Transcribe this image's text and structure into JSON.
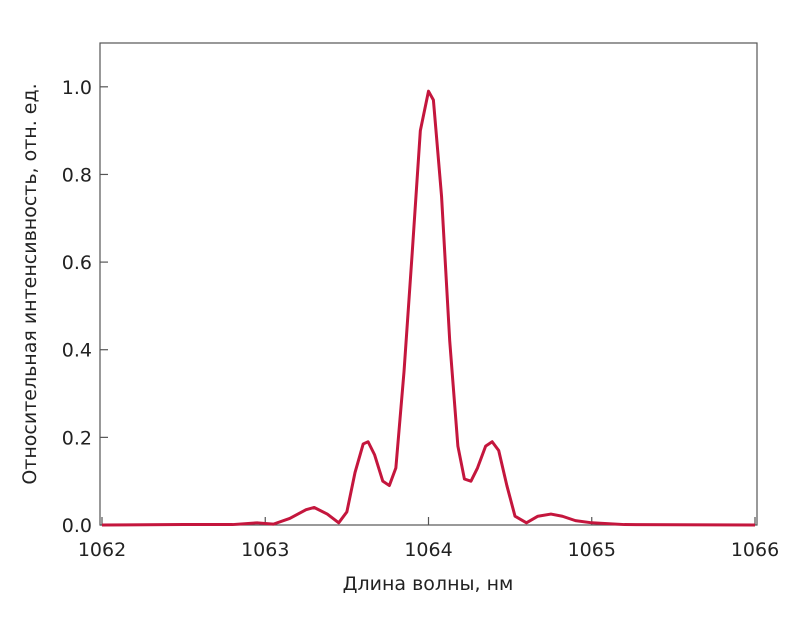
{
  "chart_data": {
    "type": "line",
    "xlabel": "Длина волны, нм",
    "ylabel": "Относительная интенсивность, отн. ед.",
    "xlim": [
      1062,
      1066
    ],
    "xticks": [
      1062,
      1063,
      1064,
      1065,
      1066
    ],
    "ylim": [
      0,
      1.1
    ],
    "yticks": [
      {
        "value": 0,
        "label": "0.0"
      },
      0.2,
      0.4,
      0.6,
      0.8,
      {
        "value": 1,
        "label": "1.0"
      }
    ],
    "x": [
      1062,
      1062.5,
      1062.8,
      1062.95,
      1063.05,
      1063.15,
      1063.25,
      1063.3,
      1063.38,
      1063.45,
      1063.5,
      1063.55,
      1063.6,
      1063.63,
      1063.67,
      1063.72,
      1063.76,
      1063.8,
      1063.85,
      1063.9,
      1063.95,
      1064.0,
      1064.03,
      1064.08,
      1064.13,
      1064.18,
      1064.22,
      1064.26,
      1064.3,
      1064.35,
      1064.39,
      1064.43,
      1064.48,
      1064.53,
      1064.6,
      1064.67,
      1064.75,
      1064.82,
      1064.9,
      1065.0,
      1065.2,
      1066
    ],
    "series": [
      {
        "color": "#c4163d",
        "values": [
          0,
          0.001,
          0.001,
          0.005,
          0.002,
          0.015,
          0.035,
          0.04,
          0.025,
          0.005,
          0.03,
          0.12,
          0.185,
          0.19,
          0.16,
          0.1,
          0.09,
          0.13,
          0.35,
          0.62,
          0.9,
          0.99,
          0.97,
          0.75,
          0.42,
          0.18,
          0.105,
          0.1,
          0.13,
          0.18,
          0.19,
          0.17,
          0.09,
          0.02,
          0.005,
          0.02,
          0.025,
          0.02,
          0.01,
          0.005,
          0.001,
          0
        ]
      }
    ]
  }
}
